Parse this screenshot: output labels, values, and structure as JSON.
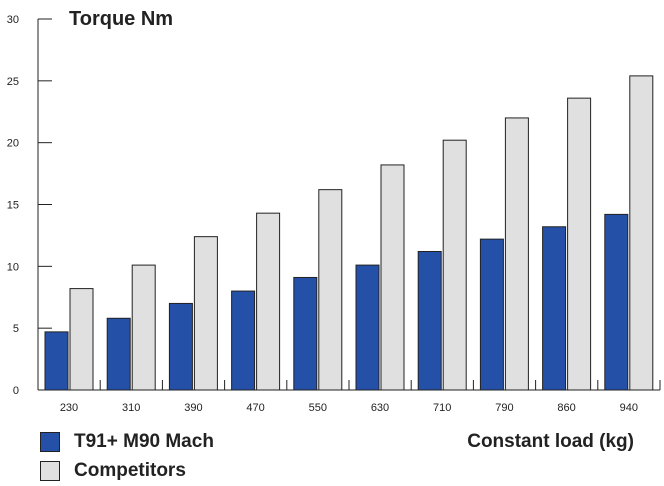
{
  "chart_data": {
    "type": "bar",
    "title": "Torque Nm",
    "xlabel": "Constant load (kg)",
    "ylabel": "",
    "ylim": [
      0,
      30
    ],
    "yticks": [
      0,
      5,
      10,
      15,
      20,
      25,
      30
    ],
    "categories": [
      "230",
      "310",
      "390",
      "470",
      "550",
      "630",
      "710",
      "790",
      "860",
      "940"
    ],
    "series": [
      {
        "name": "T91+ M90 Mach",
        "color": "#2550a8",
        "values": [
          4.7,
          5.8,
          7.0,
          8.0,
          9.1,
          10.1,
          11.2,
          12.2,
          13.2,
          14.2
        ]
      },
      {
        "name": "Competitors",
        "color": "#e0e0e0",
        "values": [
          8.2,
          10.1,
          12.4,
          14.3,
          16.2,
          18.2,
          20.2,
          22.0,
          23.6,
          25.4
        ]
      }
    ],
    "grid": false,
    "legend_position": "bottom-left"
  }
}
